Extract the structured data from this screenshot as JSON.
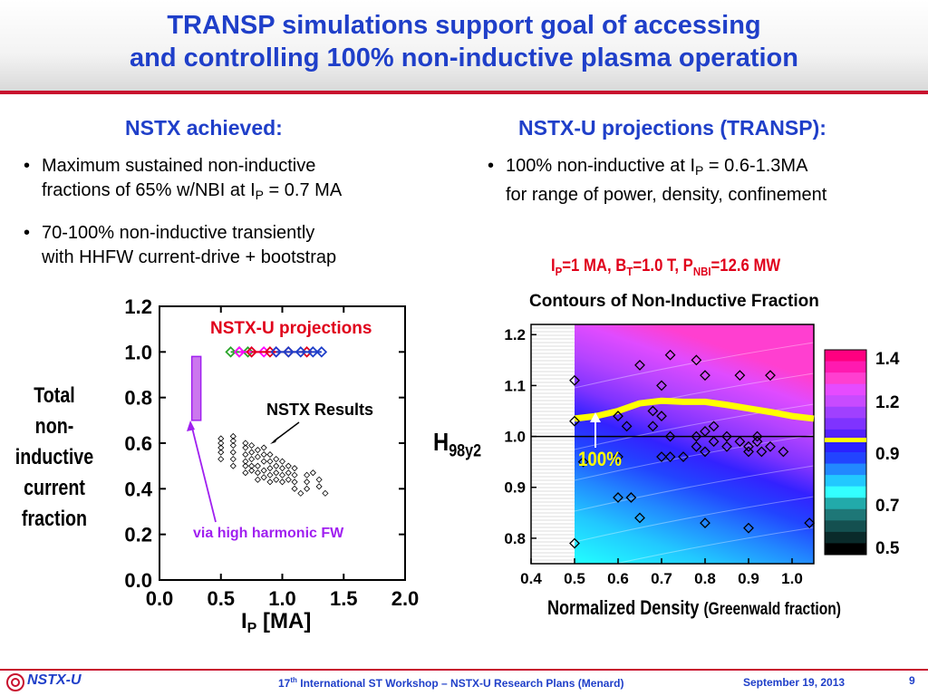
{
  "slide": {
    "title_line1": "TRANSP simulations support goal of accessing",
    "title_line2": "and controlling 100% non-inductive plasma operation",
    "left_heading": "NSTX achieved:",
    "right_heading": "NSTX-U projections (TRANSP):",
    "left_bullet1_a": "Maximum sustained non-inductive",
    "left_bullet1_b": "fractions of 65% w/NBI at I",
    "left_bullet1_sub": "P",
    "left_bullet1_c": " = 0.7 MA",
    "left_bullet2_a": "70-100% non-inductive transiently",
    "left_bullet2_b": "with HHFW current-drive + bootstrap",
    "right_bullet1_a": "100% non-inductive at I",
    "right_bullet1_sub": "P",
    "right_bullet1_b": " = 0.6-1.3MA",
    "right_bullet1_c": "for range of power, density, confinement",
    "bullet_char": "•"
  },
  "footer": {
    "logo": "NSTX-U",
    "workshop_sup": "th",
    "workshop_num": "17",
    "workshop_rest": " International ST Workshop –  NSTX-U Research Plans (Menard)",
    "date": "September 19, 2013",
    "page": "9"
  },
  "chart_data": [
    {
      "type": "scatter",
      "xlabel": "I",
      "xlabel_sub": "P",
      "xlabel_unit": " [MA]",
      "ylabel_lines": [
        "Total",
        "non-",
        "inductive",
        "current",
        "fraction"
      ],
      "xlim": [
        0.0,
        2.0
      ],
      "ylim": [
        0.0,
        1.2
      ],
      "xticks": [
        "0.0",
        "0.5",
        "1.0",
        "1.5",
        "2.0"
      ],
      "yticks": [
        "0.0",
        "0.2",
        "0.4",
        "0.6",
        "0.8",
        "1.0",
        "1.2"
      ],
      "annotations": {
        "projections": "NSTX-U projections",
        "results": "NSTX Results",
        "hhfw": "via high harmonic FW"
      },
      "colors": {
        "projections_label": "#e0001b",
        "hhfw": "#a020f0",
        "hhfw_fill": "#cc77ee"
      },
      "hhfw_range": {
        "x": 0.3,
        "y": [
          0.7,
          0.98
        ]
      },
      "nstx_u_series": [
        {
          "color": "#2aa52a",
          "x": [
            0.58,
            0.65,
            0.72
          ],
          "y": [
            1.0,
            1.0,
            1.0
          ]
        },
        {
          "color": "#ff00ff",
          "x": [
            0.65,
            0.75,
            0.85,
            0.95
          ],
          "y": [
            1.0,
            1.0,
            1.0,
            1.0
          ]
        },
        {
          "color": "#e0001b",
          "x": [
            0.75,
            0.9,
            1.05,
            1.2
          ],
          "y": [
            1.0,
            1.0,
            1.0,
            1.0
          ]
        },
        {
          "color": "#1f3fc9",
          "x": [
            0.95,
            1.05,
            1.15,
            1.25,
            1.32
          ],
          "y": [
            1.0,
            1.0,
            1.0,
            1.0,
            1.0
          ]
        }
      ],
      "nstx_results": {
        "x": [
          0.5,
          0.5,
          0.5,
          0.5,
          0.5,
          0.6,
          0.6,
          0.6,
          0.6,
          0.6,
          0.6,
          0.7,
          0.7,
          0.7,
          0.7,
          0.7,
          0.7,
          0.75,
          0.75,
          0.75,
          0.75,
          0.75,
          0.8,
          0.8,
          0.8,
          0.8,
          0.8,
          0.85,
          0.85,
          0.85,
          0.85,
          0.85,
          0.9,
          0.9,
          0.9,
          0.9,
          0.9,
          0.95,
          0.95,
          0.95,
          0.95,
          1.0,
          1.0,
          1.0,
          1.0,
          1.05,
          1.05,
          1.05,
          1.1,
          1.1,
          1.1,
          1.1,
          1.2,
          1.2,
          1.2,
          1.3,
          1.3,
          1.35,
          1.25,
          1.15
        ],
        "y": [
          0.62,
          0.6,
          0.58,
          0.56,
          0.53,
          0.63,
          0.61,
          0.59,
          0.56,
          0.53,
          0.5,
          0.6,
          0.58,
          0.55,
          0.52,
          0.5,
          0.47,
          0.59,
          0.56,
          0.53,
          0.5,
          0.48,
          0.57,
          0.54,
          0.5,
          0.47,
          0.44,
          0.58,
          0.55,
          0.52,
          0.48,
          0.45,
          0.55,
          0.52,
          0.49,
          0.46,
          0.43,
          0.53,
          0.5,
          0.47,
          0.44,
          0.52,
          0.49,
          0.46,
          0.43,
          0.5,
          0.47,
          0.44,
          0.49,
          0.46,
          0.43,
          0.4,
          0.46,
          0.43,
          0.4,
          0.44,
          0.41,
          0.38,
          0.47,
          0.38
        ]
      }
    },
    {
      "type": "heatmap",
      "condition": {
        "a": "I",
        "a_sub": "P",
        "b": "=1 MA, B",
        "b_sub": "T",
        "c": "=1.0 T, P",
        "c_sub": "NBI",
        "d": "=12.6 MW"
      },
      "title": "Contours of Non-Inductive Fraction",
      "xlabel": "Normalized Density",
      "xlabel_suffix": "(Greenwald fraction)",
      "ylabel": "H",
      "ylabel_sub": "98y2",
      "xlim": [
        0.4,
        1.05
      ],
      "ylim": [
        0.75,
        1.22
      ],
      "xticks": [
        "0.4",
        "0.5",
        "0.6",
        "0.7",
        "0.8",
        "0.9",
        "1.0"
      ],
      "yticks": [
        "0.8",
        "0.9",
        "1.0",
        "1.1",
        "1.2"
      ],
      "reference_line_y": 1.0,
      "label_100": "100%",
      "colors": {
        "label_100": "#ffff00",
        "curve": "#ffff00"
      },
      "colorbar": {
        "ticks": [
          "1.4",
          "1.2",
          "0.9",
          "0.7",
          "0.5"
        ],
        "bands": [
          "#ff0080",
          "#ff1ab0",
          "#ff3fd0",
          "#e64bff",
          "#c84bff",
          "#a040ff",
          "#7f33ff",
          "#5522ff",
          "#2a22ff",
          "#2244ff",
          "#2288ff",
          "#22c8ff",
          "#33ffff",
          "#22aaaa",
          "#1e7777",
          "#145050",
          "#0a2a2a",
          "#000000"
        ]
      },
      "curve_100": {
        "x": [
          0.5,
          0.55,
          0.6,
          0.65,
          0.7,
          0.75,
          0.8,
          0.85,
          0.9,
          0.95,
          1.0,
          1.05
        ],
        "y": [
          1.035,
          1.04,
          1.05,
          1.065,
          1.07,
          1.068,
          1.068,
          1.062,
          1.055,
          1.048,
          1.04,
          1.035
        ]
      },
      "points": {
        "x": [
          0.5,
          0.5,
          0.52,
          0.6,
          0.62,
          0.63,
          0.65,
          0.68,
          0.68,
          0.7,
          0.7,
          0.72,
          0.72,
          0.78,
          0.78,
          0.78,
          0.8,
          0.8,
          0.82,
          0.82,
          0.85,
          0.85,
          0.88,
          0.9,
          0.9,
          0.92,
          0.92,
          0.95,
          0.98,
          0.6,
          0.6,
          0.65,
          0.72,
          0.8,
          0.9,
          1.04,
          0.5,
          0.7,
          0.75,
          0.8,
          0.88,
          0.93,
          0.95
        ],
        "y": [
          1.11,
          1.03,
          0.95,
          1.04,
          1.02,
          0.88,
          1.14,
          1.05,
          1.02,
          1.1,
          1.04,
          1.16,
          1.0,
          1.15,
          1.0,
          0.98,
          1.12,
          0.97,
          1.02,
          0.99,
          1.0,
          0.98,
          1.12,
          0.98,
          0.97,
          1.0,
          0.99,
          1.12,
          0.97,
          0.96,
          0.88,
          0.84,
          0.96,
          0.83,
          0.82,
          0.83,
          0.79,
          0.96,
          0.96,
          1.01,
          0.99,
          0.97,
          0.98
        ]
      }
    }
  ]
}
